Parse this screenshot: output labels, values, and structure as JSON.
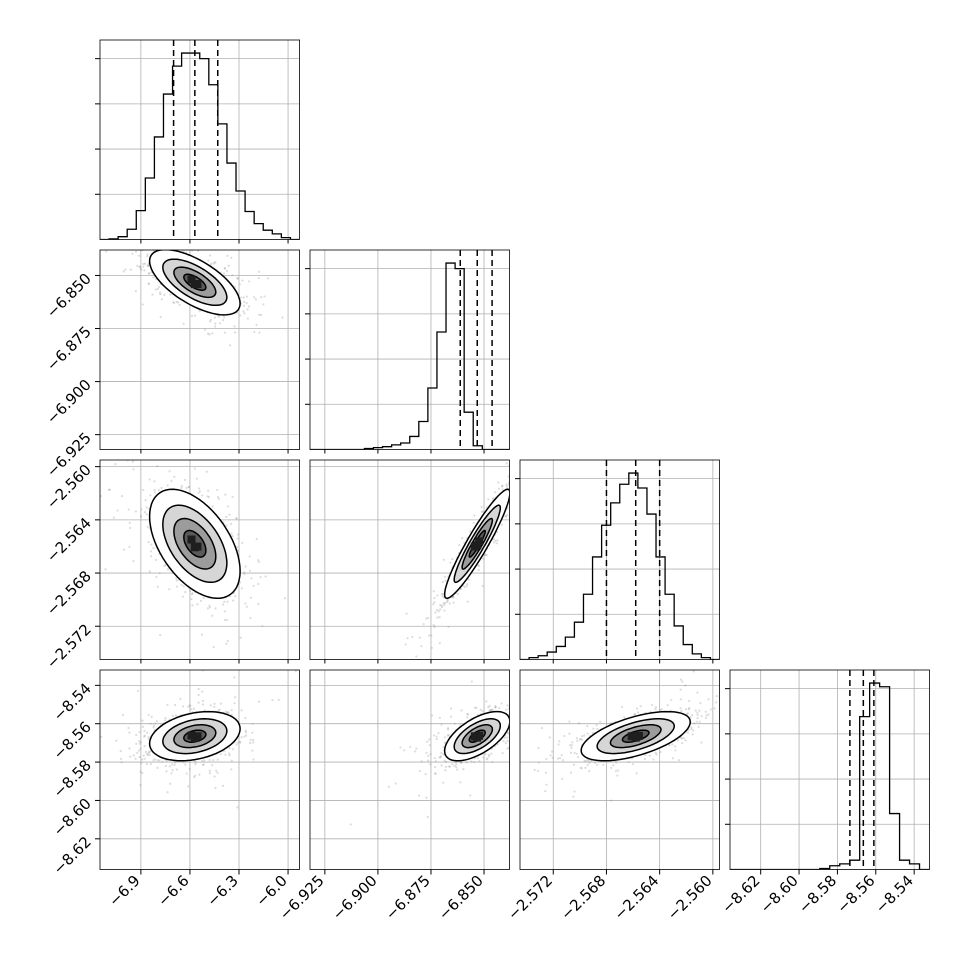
{
  "chart_data": {
    "type": "corner",
    "title": "",
    "grid": true,
    "parameters": [
      {
        "index": 0,
        "range": [
          -7.15,
          -5.93
        ],
        "ticks": [
          -6.9,
          -6.6,
          -6.3,
          -6.0
        ],
        "tick_labels": [
          "−6.9",
          "−6.6",
          "−6.3",
          "−6.0"
        ],
        "quantiles": [
          -6.7,
          -6.57,
          -6.43
        ]
      },
      {
        "index": 1,
        "range": [
          -6.932,
          -6.838
        ],
        "ticks": [
          -6.925,
          -6.9,
          -6.875,
          -6.85
        ],
        "tick_labels": [
          "−6.925",
          "−6.900",
          "−6.875",
          "−6.850"
        ],
        "quantiles": [
          -6.8612,
          -6.8532,
          -6.8462
        ]
      },
      {
        "index": 2,
        "range": [
          -2.5745,
          -2.5595
        ],
        "ticks": [
          -2.572,
          -2.568,
          -2.564,
          -2.56
        ],
        "tick_labels": [
          "−2.572",
          "−2.568",
          "−2.564",
          "−2.560"
        ],
        "quantiles": [
          -2.568,
          -2.5658,
          -2.564
        ]
      },
      {
        "index": 3,
        "range": [
          -8.636,
          -8.532
        ],
        "ticks": [
          -8.62,
          -8.6,
          -8.58,
          -8.56,
          -8.54
        ],
        "tick_labels": [
          "−8.62",
          "−8.60",
          "−8.58",
          "−8.56",
          "−8.54"
        ],
        "quantiles": [
          -8.5735,
          -8.5665,
          -8.561
        ]
      }
    ],
    "histograms": [
      {
        "param": 0,
        "counts": [
          0,
          0.3,
          1.5,
          5.5,
          15.5,
          33,
          55,
          78,
          93,
          100,
          100,
          97,
          83,
          62,
          41,
          26,
          15,
          8.5,
          5,
          3,
          1,
          0
        ]
      },
      {
        "param": 1,
        "counts": [
          0,
          0,
          0,
          0,
          0,
          0,
          0.5,
          1,
          1.5,
          2.5,
          3.5,
          7,
          15,
          33,
          63,
          100,
          97,
          20,
          2,
          0,
          0,
          0
        ]
      },
      {
        "param": 2,
        "counts": [
          0,
          1,
          2,
          4,
          7,
          12,
          20,
          35,
          55,
          72,
          84,
          94,
          100,
          92,
          78,
          55,
          35,
          18,
          8,
          3,
          1,
          0
        ]
      },
      {
        "param": 3,
        "counts": [
          0,
          0,
          0,
          0,
          0,
          0,
          0,
          0,
          0,
          0.5,
          2,
          3,
          5,
          82,
          100,
          98,
          30,
          5,
          3,
          0
        ]
      }
    ],
    "correlations": [
      {
        "row": 1,
        "col": 0,
        "rho": -0.65
      },
      {
        "row": 2,
        "col": 0,
        "rho": -0.5
      },
      {
        "row": 2,
        "col": 1,
        "rho": 0.93
      },
      {
        "row": 3,
        "col": 0,
        "rho": 0.3
      },
      {
        "row": 3,
        "col": 1,
        "rho": 0.6
      },
      {
        "row": 3,
        "col": 2,
        "rho": 0.58
      }
    ],
    "contour_levels": 4,
    "colors": {
      "line": "#000000",
      "grid": "#b0b0b0",
      "points": "#9a9a9a",
      "density": "#1e1e1e"
    }
  }
}
